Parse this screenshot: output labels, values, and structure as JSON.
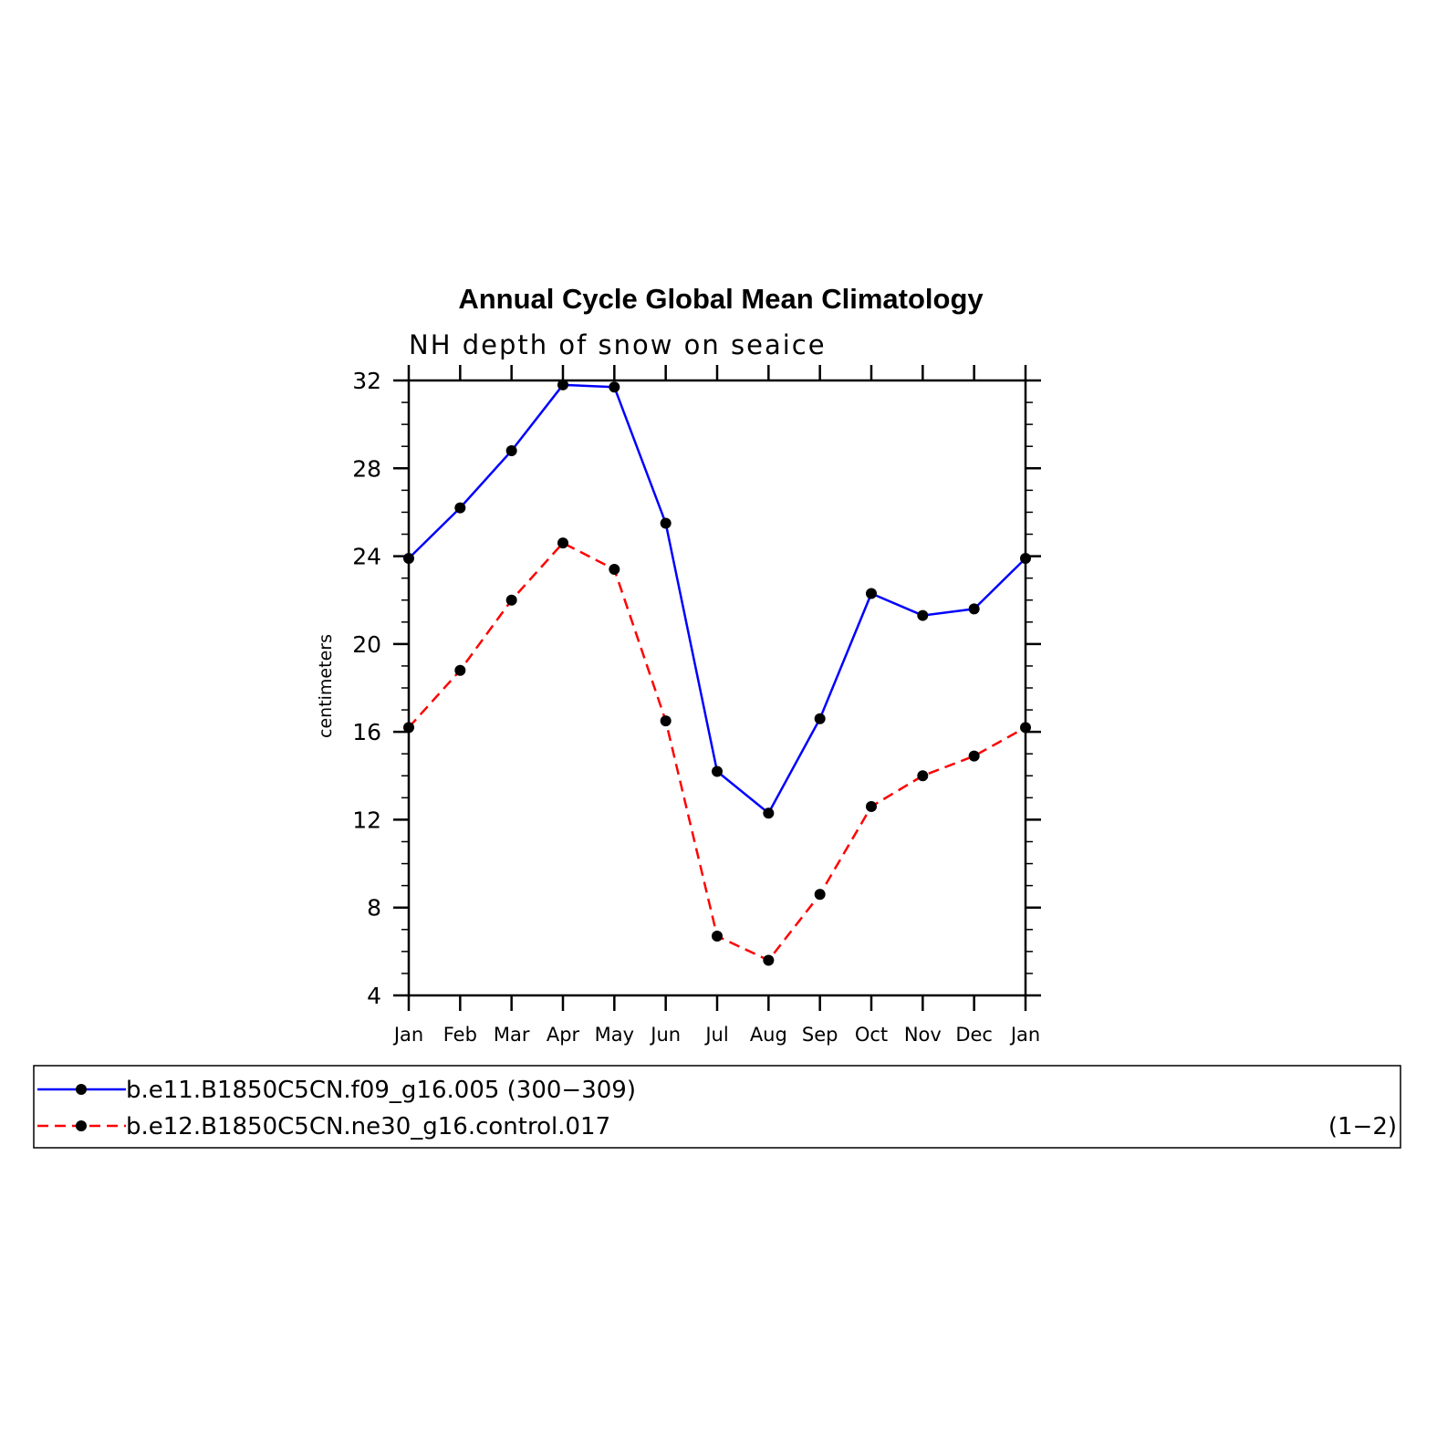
{
  "chart_data": {
    "type": "line",
    "title": "Annual Cycle Global Mean Climatology",
    "subtitle": "NH depth of snow on seaice",
    "xlabel": "",
    "ylabel": "centimeters",
    "categories": [
      "Jan",
      "Feb",
      "Mar",
      "Apr",
      "May",
      "Jun",
      "Jul",
      "Aug",
      "Sep",
      "Oct",
      "Nov",
      "Dec",
      "Jan"
    ],
    "ylim": [
      4,
      32
    ],
    "yticks": [
      4,
      8,
      12,
      16,
      20,
      24,
      28,
      32
    ],
    "grid": false,
    "legend_position": "bottom",
    "series": [
      {
        "name": "b.e11.B1850C5CN.f09_g16.005 (300−309)",
        "color": "#0000ff",
        "style": "solid",
        "values": [
          23.9,
          26.2,
          28.8,
          31.8,
          31.7,
          25.5,
          14.2,
          12.3,
          16.6,
          22.3,
          21.3,
          21.6,
          23.9
        ]
      },
      {
        "name": "b.e12.B1850C5CN.ne30_g16.control.017",
        "suffix": "(1−2)",
        "color": "#ff0000",
        "style": "dashed",
        "values": [
          16.2,
          18.8,
          22.0,
          24.6,
          23.4,
          16.5,
          6.7,
          5.6,
          8.6,
          12.6,
          14.0,
          14.9,
          16.2
        ]
      }
    ],
    "marker_color": "#000000"
  }
}
